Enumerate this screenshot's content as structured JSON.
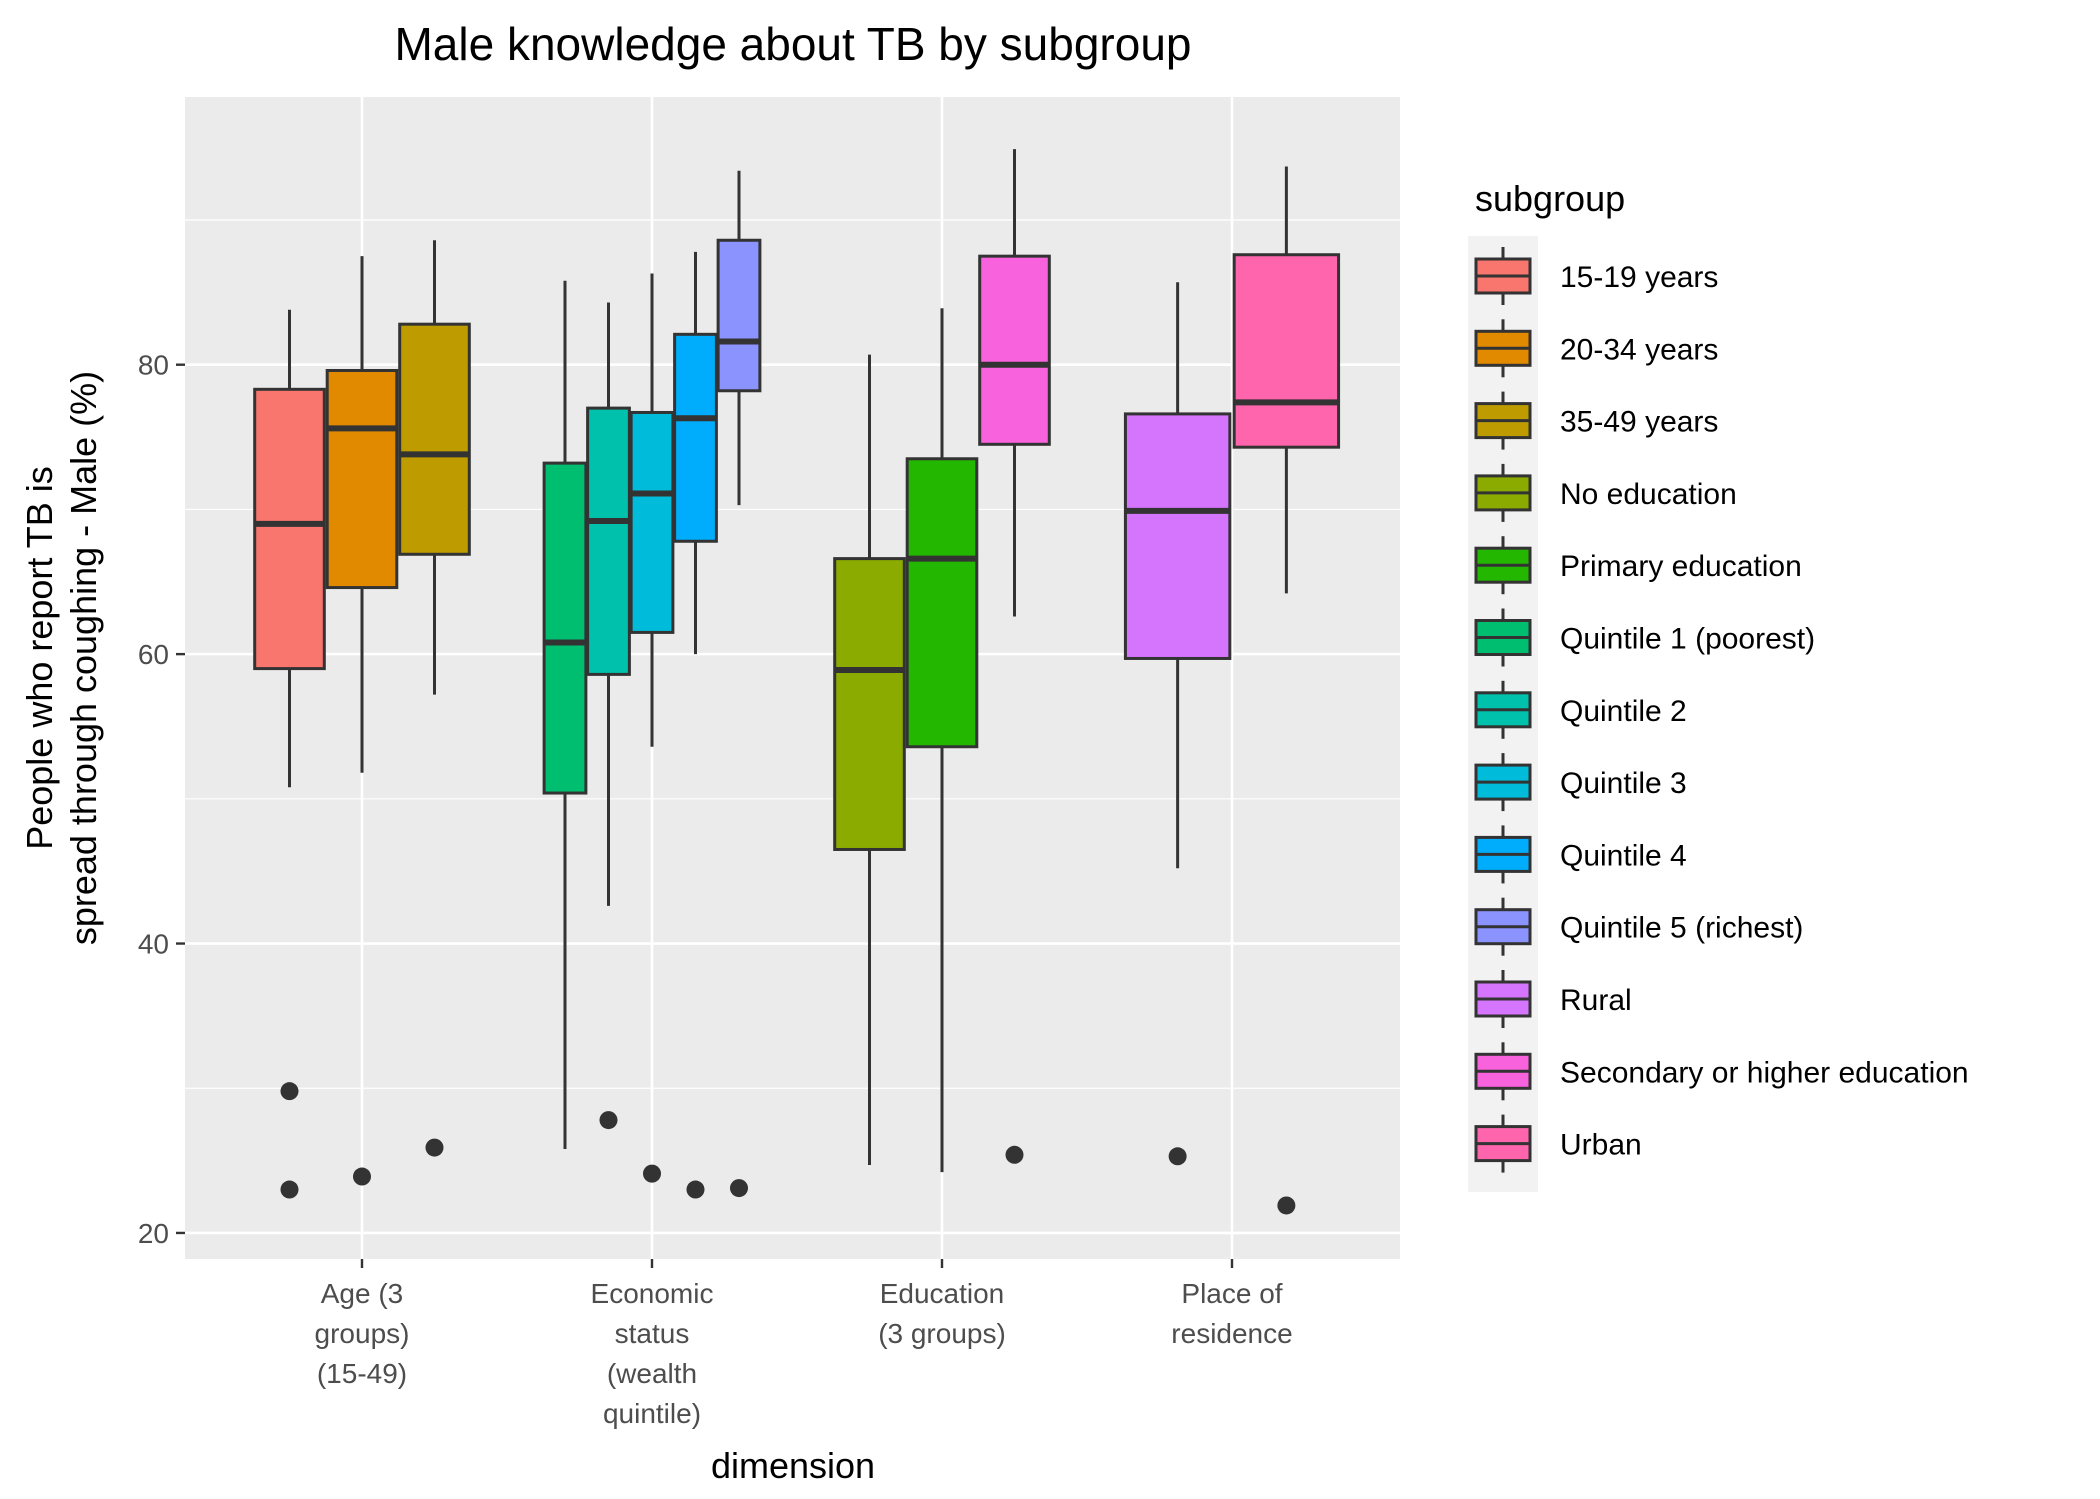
{
  "chart_data": {
    "type": "boxplot",
    "title": "Male knowledge about TB by subgroup",
    "xlabel": "dimension",
    "ylabel_lines": [
      "People who report TB is",
      "spread through coughing - Male (%)"
    ],
    "ylim": [
      18.2,
      98.5
    ],
    "yticks": [
      20,
      40,
      60,
      80
    ],
    "grid": true,
    "legend": {
      "title": "subgroup",
      "position": "right"
    },
    "categories": [
      {
        "key": "age",
        "label_lines": [
          "Age (3",
          "groups)",
          "(15-49)"
        ]
      },
      {
        "key": "econ",
        "label_lines": [
          "Economic",
          "status",
          "(wealth",
          "quintile)"
        ]
      },
      {
        "key": "edu",
        "label_lines": [
          "Education",
          "(3 groups)"
        ]
      },
      {
        "key": "res",
        "label_lines": [
          "Place of",
          "residence"
        ]
      }
    ],
    "series": [
      {
        "name": "15-19 years",
        "color": "#F8766D",
        "category": "age",
        "slot": 0,
        "slots": 3,
        "whisker_low": 50.8,
        "q1": 59.0,
        "median": 69.0,
        "q3": 78.3,
        "whisker_high": 83.8,
        "outliers": [
          29.8,
          23.0
        ]
      },
      {
        "name": "20-34 years",
        "color": "#E18A00",
        "category": "age",
        "slot": 1,
        "slots": 3,
        "whisker_low": 51.8,
        "q1": 64.6,
        "median": 75.6,
        "q3": 79.6,
        "whisker_high": 87.5,
        "outliers": [
          23.9
        ]
      },
      {
        "name": "35-49 years",
        "color": "#BE9C00",
        "category": "age",
        "slot": 2,
        "slots": 3,
        "whisker_low": 57.2,
        "q1": 66.9,
        "median": 73.8,
        "q3": 82.8,
        "whisker_high": 88.6,
        "outliers": [
          25.9
        ]
      },
      {
        "name": "No education",
        "color": "#8CAB00",
        "category": "edu",
        "slot": 0,
        "slots": 3,
        "whisker_low": 24.7,
        "q1": 46.5,
        "median": 58.9,
        "q3": 66.6,
        "whisker_high": 80.7,
        "outliers": []
      },
      {
        "name": "Primary education",
        "color": "#24B700",
        "category": "edu",
        "slot": 1,
        "slots": 3,
        "whisker_low": 24.2,
        "q1": 53.6,
        "median": 66.6,
        "q3": 73.5,
        "whisker_high": 83.9,
        "outliers": []
      },
      {
        "name": "Quintile 1 (poorest)",
        "color": "#00BE70",
        "category": "econ",
        "slot": 0,
        "slots": 5,
        "whisker_low": 25.8,
        "q1": 50.4,
        "median": 60.8,
        "q3": 73.2,
        "whisker_high": 85.8,
        "outliers": []
      },
      {
        "name": "Quintile 2",
        "color": "#00C1AB",
        "category": "econ",
        "slot": 1,
        "slots": 5,
        "whisker_low": 42.6,
        "q1": 58.6,
        "median": 69.2,
        "q3": 77.0,
        "whisker_high": 84.3,
        "outliers": [
          27.8
        ]
      },
      {
        "name": "Quintile 3",
        "color": "#00BBDA",
        "category": "econ",
        "slot": 2,
        "slots": 5,
        "whisker_low": 53.6,
        "q1": 61.5,
        "median": 71.1,
        "q3": 76.7,
        "whisker_high": 86.3,
        "outliers": [
          24.1
        ]
      },
      {
        "name": "Quintile 4",
        "color": "#00ACFC",
        "category": "econ",
        "slot": 3,
        "slots": 5,
        "whisker_low": 60.0,
        "q1": 67.8,
        "median": 76.3,
        "q3": 82.1,
        "whisker_high": 87.8,
        "outliers": [
          23.0
        ]
      },
      {
        "name": "Quintile 5 (richest)",
        "color": "#8B93FF",
        "category": "econ",
        "slot": 4,
        "slots": 5,
        "whisker_low": 70.3,
        "q1": 78.2,
        "median": 81.6,
        "q3": 88.6,
        "whisker_high": 93.4,
        "outliers": [
          23.1
        ]
      },
      {
        "name": "Rural",
        "color": "#D575FE",
        "category": "res",
        "slot": 0,
        "slots": 2,
        "whisker_low": 45.2,
        "q1": 59.7,
        "median": 69.9,
        "q3": 76.6,
        "whisker_high": 85.7,
        "outliers": [
          25.3
        ]
      },
      {
        "name": "Secondary or higher education",
        "color": "#F962DD",
        "category": "edu",
        "slot": 2,
        "slots": 3,
        "whisker_low": 62.6,
        "q1": 74.5,
        "median": 80.0,
        "q3": 87.5,
        "whisker_high": 94.9,
        "outliers": [
          25.4
        ]
      },
      {
        "name": "Urban",
        "color": "#FF65AC",
        "category": "res",
        "slot": 1,
        "slots": 2,
        "whisker_low": 64.2,
        "q1": 74.3,
        "median": 77.4,
        "q3": 87.6,
        "whisker_high": 93.7,
        "outliers": [
          21.9
        ]
      }
    ]
  }
}
